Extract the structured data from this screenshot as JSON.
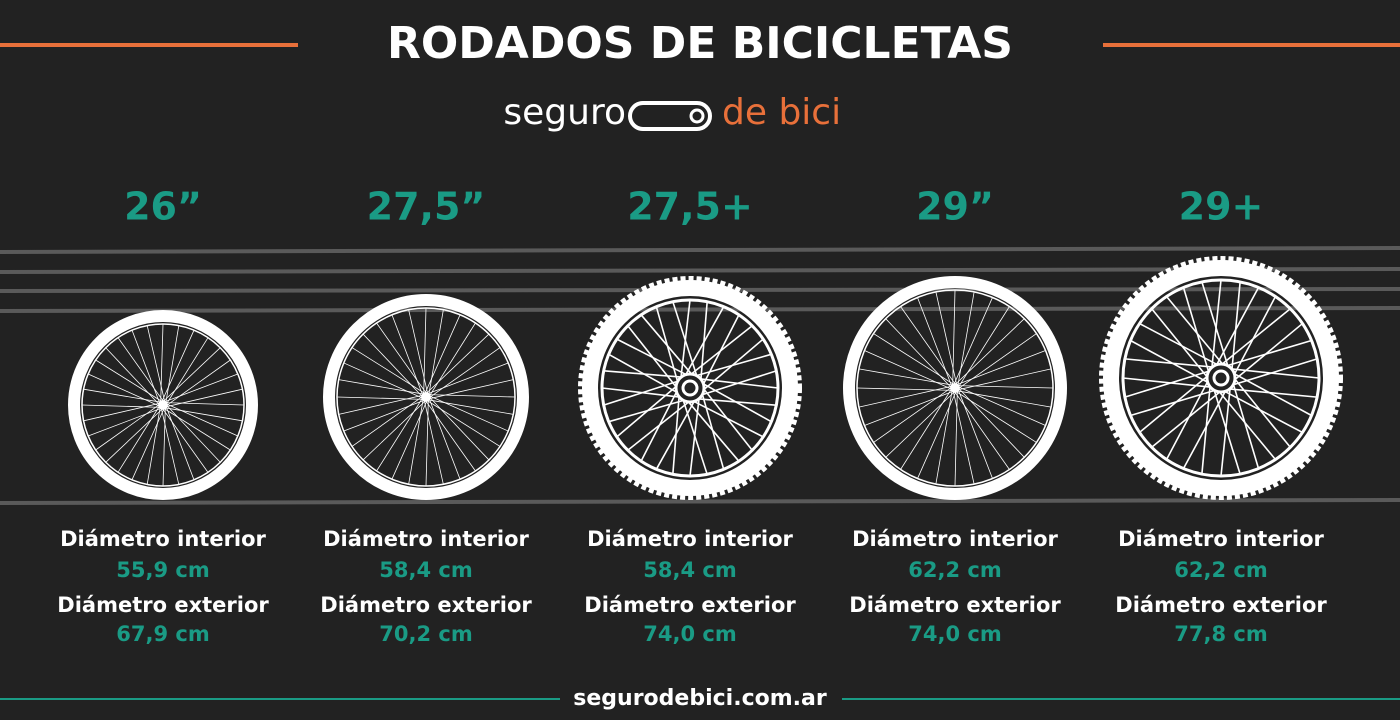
{
  "header": {
    "title": "RODADOS DE BICICLETAS",
    "brand_left": "seguro",
    "brand_right": "de bici"
  },
  "wheels": [
    {
      "size": "26”",
      "inner_label": "Diámetro interior",
      "inner_value": "55,9 cm",
      "outer_label": "Diámetro exterior",
      "outer_value": "67,9 cm"
    },
    {
      "size": "27,5”",
      "inner_label": "Diámetro interior",
      "inner_value": "58,4 cm",
      "outer_label": "Diámetro exterior",
      "outer_value": "70,2 cm"
    },
    {
      "size": "27,5+",
      "inner_label": "Diámetro interior",
      "inner_value": "58,4 cm",
      "outer_label": "Diámetro exterior",
      "outer_value": "74,0 cm"
    },
    {
      "size": "29”",
      "inner_label": "Diámetro interior",
      "inner_value": "62,2 cm",
      "outer_label": "Diámetro exterior",
      "outer_value": "74,0 cm"
    },
    {
      "size": "29+",
      "inner_label": "Diámetro interior",
      "inner_value": "62,2 cm",
      "outer_label": "Diámetro exterior",
      "outer_value": "77,8 cm"
    }
  ],
  "footer": {
    "url": "segurodebici.com.ar"
  }
}
